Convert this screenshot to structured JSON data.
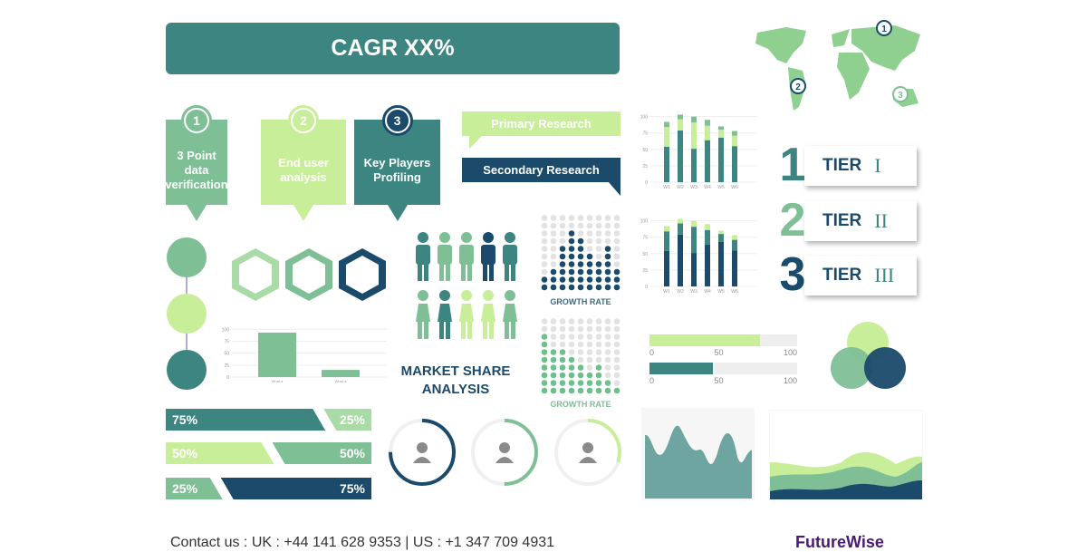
{
  "banner": {
    "title": "CAGR XX%"
  },
  "steps": [
    {
      "number": "1",
      "label": "3 Point data verification",
      "color": "#7fbf96"
    },
    {
      "number": "2",
      "label": "End user analysis",
      "color": "#c9ee9a"
    },
    {
      "number": "3",
      "label": "Key Players Profiling",
      "color": "#3d8580"
    }
  ],
  "research": {
    "primary": "Primary Research",
    "secondary": "Secondary Research"
  },
  "tiers": [
    {
      "number": "1",
      "label": "TIER",
      "roman": "I",
      "color": "#3d8580"
    },
    {
      "number": "2",
      "label": "TIER",
      "roman": "II",
      "color": "#7fbf96"
    },
    {
      "number": "3",
      "label": "TIER",
      "roman": "III",
      "color": "#1b4a6b"
    }
  ],
  "market_share": {
    "line1": "MARKET SHARE",
    "line2": "ANALYSIS"
  },
  "growth": {
    "label_top": "GROWTH RATE",
    "label_bottom": "GROWTH RATE"
  },
  "split_bars": [
    {
      "left": "75%",
      "right": "25%",
      "left_value": 75,
      "left_color": "#3d8580",
      "right_color": "#a8dba6"
    },
    {
      "left": "50%",
      "right": "50%",
      "left_value": 50,
      "left_color": "#c9ee9a",
      "right_color": "#7fbf96"
    },
    {
      "left": "25%",
      "right": "75%",
      "left_value": 25,
      "left_color": "#7fbf96",
      "right_color": "#1b4a6b"
    }
  ],
  "rings": [
    {
      "progress": 0.75,
      "color": "#1b4a6b"
    },
    {
      "progress": 0.5,
      "color": "#7fbf96"
    },
    {
      "progress": 0.3,
      "color": "#c9ee9a"
    }
  ],
  "progress_bars": [
    {
      "value": 75,
      "color": "#c9ee9a",
      "ticks": [
        "0",
        "50",
        "100"
      ]
    },
    {
      "value": 43,
      "color": "#3d8580",
      "ticks": [
        "0",
        "50",
        "100"
      ]
    }
  ],
  "chart_data": [
    {
      "type": "bar",
      "stacked": true,
      "categories": [
        "W1",
        "W2",
        "W3",
        "W4",
        "W5",
        "W6"
      ],
      "yticks": [
        "0",
        "25",
        "50",
        "75",
        "100"
      ],
      "ylim": [
        0,
        105
      ],
      "series": [
        {
          "values": [
            54,
            79,
            51,
            64,
            68,
            55
          ],
          "color": "#3d8580"
        },
        {
          "values": [
            30,
            17,
            40,
            22,
            12,
            16
          ],
          "color": "#c9ee9a"
        },
        {
          "values": [
            8,
            7,
            9,
            9,
            5,
            7
          ],
          "color": "#7fbf96"
        }
      ]
    },
    {
      "type": "bar",
      "stacked": true,
      "categories": [
        "W1",
        "W2",
        "W3",
        "W4",
        "W5",
        "W6"
      ],
      "yticks": [
        "0",
        "25",
        "50",
        "75",
        "100"
      ],
      "ylim": [
        0,
        105
      ],
      "series": [
        {
          "values": [
            54,
            79,
            51,
            64,
            68,
            55
          ],
          "color": "#1b4a6b"
        },
        {
          "values": [
            30,
            17,
            40,
            22,
            12,
            16
          ],
          "color": "#3d8580"
        },
        {
          "values": [
            8,
            7,
            9,
            9,
            5,
            7
          ],
          "color": "#c9ee9a"
        }
      ]
    },
    {
      "type": "bar",
      "categories": [
        "What a",
        "What a"
      ],
      "yticks": [
        "0",
        "25",
        "50",
        "75",
        "100"
      ],
      "ylim": [
        0,
        110
      ],
      "values": [
        93,
        15
      ],
      "color": "#7fbf96"
    }
  ],
  "dot_grid_top": [
    2,
    3,
    6,
    8,
    7,
    5,
    4,
    6,
    3
  ],
  "dot_grid_bottom": [
    8,
    6,
    6,
    5,
    4,
    3,
    4,
    2,
    1
  ],
  "footer": {
    "contact": "Contact us : UK : +44 141 628 9353 | US : +1 347 709 4931",
    "logo": "FutureWise"
  }
}
